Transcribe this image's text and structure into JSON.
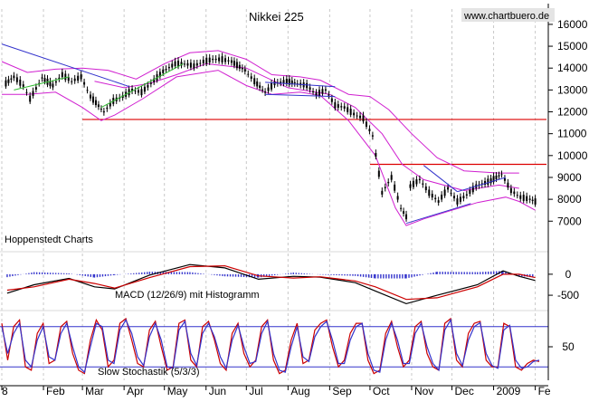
{
  "chart_data": [
    {
      "type": "candlestick",
      "title": "Nikkei 225",
      "watermark": "www.chartbuero.de",
      "note": "Hoppenstedt Charts",
      "ylim": [
        6100,
        16700
      ],
      "yticks": [
        "16000",
        "15000",
        "14000",
        "13000",
        "12000",
        "11000",
        "10000",
        "9000",
        "8000",
        "7000"
      ],
      "ytick_values": [
        16000,
        15000,
        14000,
        13000,
        12000,
        11000,
        10000,
        9000,
        8000,
        7000
      ],
      "x_start": "2008-01-01",
      "x_end": "2009-02-08",
      "xticks": [
        "8",
        "Feb",
        "Mar",
        "Apr",
        "May",
        "Jun",
        "Jul",
        "Aug",
        "Sep",
        "Oct",
        "Nov",
        "Dec",
        "2009",
        "Fe"
      ],
      "xtick_dates": [
        "2008-01-01",
        "2008-02-01",
        "2008-03-01",
        "2008-04-01",
        "2008-05-01",
        "2008-06-01",
        "2008-07-01",
        "2008-08-01",
        "2008-09-01",
        "2008-10-01",
        "2008-11-01",
        "2008-12-01",
        "2009-01-01",
        "2009-02-01"
      ],
      "price": [
        [
          "2008-01-04",
          13300
        ],
        [
          "2008-01-10",
          13600
        ],
        [
          "2008-01-17",
          13200
        ],
        [
          "2008-01-22",
          12600
        ],
        [
          "2008-01-31",
          13550
        ],
        [
          "2008-02-08",
          13200
        ],
        [
          "2008-02-15",
          13700
        ],
        [
          "2008-02-22",
          13400
        ],
        [
          "2008-02-29",
          13600
        ],
        [
          "2008-03-07",
          12700
        ],
        [
          "2008-03-17",
          12000
        ],
        [
          "2008-03-24",
          12500
        ],
        [
          "2008-03-31",
          12700
        ],
        [
          "2008-04-07",
          13000
        ],
        [
          "2008-04-14",
          12900
        ],
        [
          "2008-04-21",
          13300
        ],
        [
          "2008-04-30",
          13850
        ],
        [
          "2008-05-09",
          14200
        ],
        [
          "2008-05-16",
          14200
        ],
        [
          "2008-05-23",
          14100
        ],
        [
          "2008-05-30",
          14300
        ],
        [
          "2008-06-06",
          14400
        ],
        [
          "2008-06-13",
          14400
        ],
        [
          "2008-06-20",
          14300
        ],
        [
          "2008-06-30",
          13900
        ],
        [
          "2008-07-07",
          13400
        ],
        [
          "2008-07-15",
          12900
        ],
        [
          "2008-07-22",
          13300
        ],
        [
          "2008-07-31",
          13400
        ],
        [
          "2008-08-08",
          13300
        ],
        [
          "2008-08-15",
          13200
        ],
        [
          "2008-08-22",
          12800
        ],
        [
          "2008-08-29",
          13000
        ],
        [
          "2008-09-05",
          12300
        ],
        [
          "2008-09-12",
          12200
        ],
        [
          "2008-09-19",
          11900
        ],
        [
          "2008-09-26",
          11700
        ],
        [
          "2008-10-03",
          10900
        ],
        [
          "2008-10-10",
          8300
        ],
        [
          "2008-10-17",
          9000
        ],
        [
          "2008-10-24",
          7600
        ],
        [
          "2008-10-28",
          7200
        ],
        [
          "2008-10-31",
          8600
        ],
        [
          "2008-11-07",
          8900
        ],
        [
          "2008-11-14",
          8300
        ],
        [
          "2008-11-21",
          7900
        ],
        [
          "2008-11-28",
          8500
        ],
        [
          "2008-12-05",
          7900
        ],
        [
          "2008-12-12",
          8200
        ],
        [
          "2008-12-19",
          8600
        ],
        [
          "2008-12-30",
          8850
        ],
        [
          "2009-01-07",
          9150
        ],
        [
          "2009-01-14",
          8400
        ],
        [
          "2009-01-21",
          8100
        ],
        [
          "2009-01-28",
          8000
        ],
        [
          "2009-02-01",
          7900
        ]
      ],
      "bollinger_upper": [
        [
          "2008-01-01",
          14300
        ],
        [
          "2008-01-20",
          13800
        ],
        [
          "2008-02-10",
          13950
        ],
        [
          "2008-03-01",
          14000
        ],
        [
          "2008-03-20",
          13900
        ],
        [
          "2008-04-10",
          13500
        ],
        [
          "2008-05-01",
          14200
        ],
        [
          "2008-05-20",
          14700
        ],
        [
          "2008-06-10",
          14800
        ],
        [
          "2008-07-01",
          14400
        ],
        [
          "2008-07-20",
          13700
        ],
        [
          "2008-08-10",
          13600
        ],
        [
          "2008-08-25",
          13450
        ],
        [
          "2008-09-15",
          12800
        ],
        [
          "2008-10-01",
          12700
        ],
        [
          "2008-10-15",
          12100
        ],
        [
          "2008-11-01",
          11000
        ],
        [
          "2008-11-20",
          9900
        ],
        [
          "2008-12-10",
          9300
        ],
        [
          "2009-01-05",
          9200
        ],
        [
          "2009-01-20",
          9200
        ]
      ],
      "bollinger_lower": [
        [
          "2008-01-01",
          12800
        ],
        [
          "2008-01-20",
          12800
        ],
        [
          "2008-02-10",
          12900
        ],
        [
          "2008-03-01",
          12200
        ],
        [
          "2008-03-15",
          11600
        ],
        [
          "2008-03-25",
          11850
        ],
        [
          "2008-04-15",
          12600
        ],
        [
          "2008-05-10",
          13600
        ],
        [
          "2008-06-10",
          13900
        ],
        [
          "2008-07-01",
          13200
        ],
        [
          "2008-07-20",
          12800
        ],
        [
          "2008-08-10",
          12900
        ],
        [
          "2008-08-25",
          12750
        ],
        [
          "2008-09-15",
          11600
        ],
        [
          "2008-10-05",
          10000
        ],
        [
          "2008-10-20",
          7600
        ],
        [
          "2008-10-28",
          6800
        ],
        [
          "2008-11-10",
          7100
        ],
        [
          "2008-12-01",
          7500
        ],
        [
          "2008-12-20",
          7850
        ],
        [
          "2009-01-10",
          8100
        ],
        [
          "2009-01-20",
          7900
        ],
        [
          "2009-02-01",
          7500
        ]
      ],
      "moving_average": [
        [
          "2008-03-10",
          13400
        ],
        [
          "2008-04-01",
          13100
        ],
        [
          "2008-04-20",
          13300
        ],
        [
          "2008-05-10",
          13700
        ],
        [
          "2008-06-01",
          14200
        ],
        [
          "2008-07-01",
          14000
        ],
        [
          "2008-08-01",
          13100
        ],
        [
          "2008-09-01",
          12800
        ],
        [
          "2008-09-20",
          12200
        ],
        [
          "2008-10-10",
          11000
        ],
        [
          "2008-10-25",
          9600
        ],
        [
          "2008-11-10",
          8900
        ],
        [
          "2008-12-10",
          8400
        ],
        [
          "2009-01-05",
          8650
        ],
        [
          "2009-01-20",
          8500
        ]
      ],
      "trendlines": [
        {
          "color": "#3333cc",
          "points": [
            [
              "2008-01-01",
              15100
            ],
            [
              "2008-04-05",
              13150
            ]
          ]
        },
        {
          "color": "#33bb33",
          "points": [
            [
              "2008-01-10",
              13000
            ],
            [
              "2008-02-20",
              13600
            ]
          ]
        },
        {
          "color": "#33bb33",
          "points": [
            [
              "2008-03-15",
              12200
            ],
            [
              "2008-05-15",
              14200
            ]
          ]
        },
        {
          "color": "#3333cc",
          "points": [
            [
              "2008-07-15",
              12800
            ],
            [
              "2008-09-05",
              12700
            ]
          ]
        },
        {
          "color": "#3333cc",
          "points": [
            [
              "2008-07-15",
              13350
            ],
            [
              "2008-09-05",
              13150
            ]
          ]
        },
        {
          "color": "#3333cc",
          "points": [
            [
              "2008-10-28",
              6900
            ],
            [
              "2008-12-15",
              7800
            ]
          ]
        },
        {
          "color": "#3333cc",
          "points": [
            [
              "2008-11-10",
              9550
            ],
            [
              "2008-12-05",
              8350
            ]
          ]
        },
        {
          "color": "#3333cc",
          "points": [
            [
              "2008-12-05",
              8350
            ],
            [
              "2009-01-10",
              9000
            ]
          ]
        }
      ],
      "support_lines": [
        {
          "color": "#dd0000",
          "value": 11650,
          "from": "2008-03-01",
          "to": "2009-02-08"
        },
        {
          "color": "#dd0000",
          "value": 9600,
          "from": "2008-10-01",
          "to": "2009-02-08"
        }
      ]
    },
    {
      "type": "line",
      "label": "MACD (12/26/9) mit Histogramm",
      "yticks": [
        "0",
        "-500"
      ],
      "ytick_values": [
        0,
        -500
      ],
      "ylim": [
        -800,
        450
      ],
      "series": [
        {
          "color": "#000000",
          "points": [
            [
              "2008-01-05",
              -450
            ],
            [
              "2008-01-25",
              -250
            ],
            [
              "2008-02-20",
              -100
            ],
            [
              "2008-03-10",
              -300
            ],
            [
              "2008-03-25",
              -350
            ],
            [
              "2008-04-20",
              -20
            ],
            [
              "2008-05-20",
              230
            ],
            [
              "2008-06-15",
              150
            ],
            [
              "2008-07-10",
              -120
            ],
            [
              "2008-08-05",
              -50
            ],
            [
              "2008-08-25",
              -70
            ],
            [
              "2008-09-20",
              -200
            ],
            [
              "2008-10-05",
              -400
            ],
            [
              "2008-10-28",
              -700
            ],
            [
              "2008-11-20",
              -500
            ],
            [
              "2008-12-20",
              -250
            ],
            [
              "2009-01-08",
              80
            ],
            [
              "2009-01-20",
              -50
            ],
            [
              "2009-02-01",
              -150
            ]
          ]
        },
        {
          "color": "#cc0000",
          "points": [
            [
              "2008-01-05",
              -380
            ],
            [
              "2008-01-25",
              -300
            ],
            [
              "2008-02-20",
              -120
            ],
            [
              "2008-03-10",
              -220
            ],
            [
              "2008-03-25",
              -330
            ],
            [
              "2008-04-20",
              -80
            ],
            [
              "2008-05-20",
              180
            ],
            [
              "2008-06-15",
              200
            ],
            [
              "2008-07-10",
              -40
            ],
            [
              "2008-08-05",
              -90
            ],
            [
              "2008-08-25",
              -60
            ],
            [
              "2008-09-20",
              -160
            ],
            [
              "2008-10-05",
              -300
            ],
            [
              "2008-10-28",
              -600
            ],
            [
              "2008-11-20",
              -560
            ],
            [
              "2008-12-20",
              -300
            ],
            [
              "2009-01-08",
              0
            ],
            [
              "2009-01-20",
              0
            ],
            [
              "2009-02-01",
              -80
            ]
          ]
        }
      ],
      "histogram": {
        "color": "#3333cc",
        "points": [
          [
            "2008-01-05",
            -70
          ],
          [
            "2008-01-25",
            50
          ],
          [
            "2008-02-20",
            20
          ],
          [
            "2008-03-10",
            -80
          ],
          [
            "2008-03-25",
            -20
          ],
          [
            "2008-04-20",
            60
          ],
          [
            "2008-05-20",
            50
          ],
          [
            "2008-06-15",
            -50
          ],
          [
            "2008-07-10",
            -80
          ],
          [
            "2008-08-05",
            40
          ],
          [
            "2008-08-25",
            -10
          ],
          [
            "2008-09-20",
            -40
          ],
          [
            "2008-10-05",
            -100
          ],
          [
            "2008-10-28",
            -100
          ],
          [
            "2008-11-20",
            60
          ],
          [
            "2008-12-20",
            50
          ],
          [
            "2009-01-08",
            80
          ],
          [
            "2009-01-20",
            -50
          ],
          [
            "2009-02-01",
            -70
          ]
        ]
      }
    },
    {
      "type": "line",
      "label": "Slow Stochastik (5/3/3)",
      "yticks": [
        "50"
      ],
      "ytick_values": [
        50
      ],
      "ylim": [
        0,
        100
      ],
      "bands": [
        80,
        20
      ],
      "series": [
        {
          "color": "#cc0000",
          "values": [
            85,
            30,
            80,
            90,
            20,
            15,
            70,
            85,
            25,
            30,
            80,
            88,
            40,
            15,
            10,
            60,
            90,
            75,
            20,
            30,
            85,
            92,
            60,
            25,
            20,
            75,
            88,
            50,
            15,
            20,
            85,
            90,
            30,
            20,
            80,
            88,
            60,
            25,
            15,
            70,
            85,
            40,
            20,
            30,
            80,
            90,
            30,
            10,
            15,
            60,
            85,
            25,
            30,
            75,
            85,
            90,
            50,
            20,
            30,
            70,
            85,
            85,
            30,
            10,
            15,
            70,
            88,
            50,
            20,
            30,
            80,
            88,
            40,
            20,
            15,
            85,
            92,
            30,
            20,
            70,
            85,
            88,
            30,
            20,
            20,
            85,
            80,
            20,
            15,
            25,
            30,
            28
          ]
        },
        {
          "color": "#3333cc",
          "values": [
            80,
            40,
            70,
            85,
            30,
            20,
            60,
            80,
            35,
            30,
            70,
            85,
            50,
            20,
            12,
            50,
            85,
            80,
            30,
            25,
            75,
            90,
            70,
            35,
            22,
            65,
            85,
            60,
            20,
            18,
            75,
            88,
            40,
            22,
            70,
            85,
            65,
            35,
            18,
            60,
            82,
            50,
            25,
            28,
            70,
            88,
            40,
            15,
            12,
            50,
            80,
            35,
            28,
            65,
            80,
            88,
            60,
            25,
            25,
            60,
            80,
            85,
            40,
            15,
            12,
            60,
            85,
            60,
            25,
            25,
            70,
            85,
            50,
            25,
            15,
            75,
            90,
            40,
            22,
            60,
            80,
            86,
            40,
            22,
            18,
            75,
            82,
            30,
            18,
            20,
            28,
            30
          ]
        }
      ]
    }
  ]
}
